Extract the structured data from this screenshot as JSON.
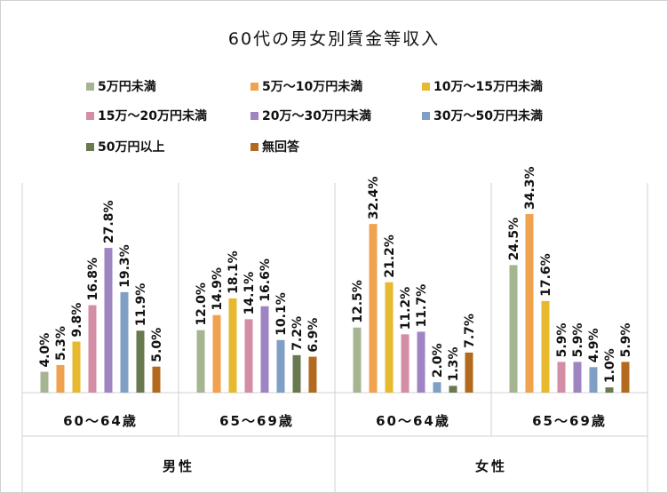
{
  "chart_data": {
    "type": "bar",
    "title": "60代の男女別賃金等収入",
    "genders": [
      "男性",
      "女性"
    ],
    "categories": [
      "60～64歳",
      "65～69歳",
      "60～64歳",
      "65～69歳"
    ],
    "series": [
      {
        "name": "5万円未満",
        "color": "#a5b592",
        "values": [
          4.0,
          12.0,
          12.5,
          24.5
        ]
      },
      {
        "name": "5万～10万円未満",
        "color": "#f0a24e",
        "values": [
          5.3,
          14.9,
          32.4,
          34.3
        ]
      },
      {
        "name": "10万～15万円未満",
        "color": "#e6b92f",
        "values": [
          9.8,
          18.1,
          21.2,
          17.6
        ]
      },
      {
        "name": "15万～20万円未満",
        "color": "#d38da5",
        "values": [
          16.8,
          14.1,
          11.2,
          5.9
        ]
      },
      {
        "name": "20万～30万円未満",
        "color": "#9e85c2",
        "values": [
          27.8,
          16.6,
          11.7,
          5.9
        ]
      },
      {
        "name": "30万～50万円未満",
        "color": "#7f9fc5",
        "values": [
          19.3,
          10.1,
          2.0,
          4.9
        ]
      },
      {
        "name": "50万円以上",
        "color": "#68784f",
        "values": [
          11.9,
          7.2,
          1.3,
          1.0
        ]
      },
      {
        "name": "無回答",
        "color": "#b26a1f",
        "values": [
          5.0,
          6.9,
          7.7,
          5.9
        ]
      }
    ],
    "unit": "%",
    "ylim": [
      0,
      35
    ],
    "grid": false,
    "legend_placement": "top"
  }
}
